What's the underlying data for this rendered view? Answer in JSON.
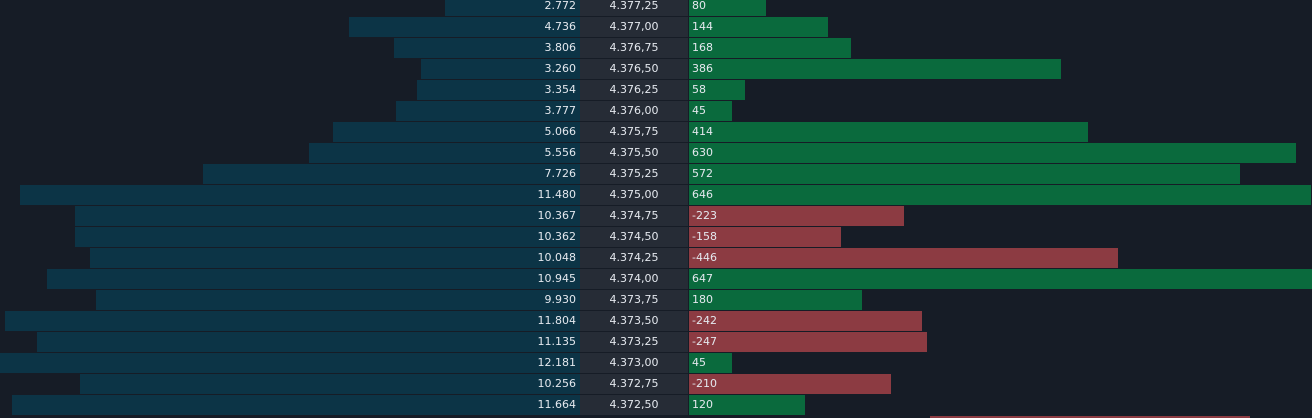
{
  "ladder": {
    "colors": {
      "volume_bar": "#0c3446",
      "price_cell": "#262c36",
      "delta_positive": "#0a6a3d",
      "delta_negative": "#8c3b42",
      "background": "#161c26"
    },
    "rows": [
      {
        "volume": "2.772",
        "price": "4.377,25",
        "delta": "80"
      },
      {
        "volume": "4.736",
        "price": "4.377,00",
        "delta": "144"
      },
      {
        "volume": "3.806",
        "price": "4.376,75",
        "delta": "168"
      },
      {
        "volume": "3.260",
        "price": "4.376,50",
        "delta": "386"
      },
      {
        "volume": "3.354",
        "price": "4.376,25",
        "delta": "58"
      },
      {
        "volume": "3.777",
        "price": "4.376,00",
        "delta": "45"
      },
      {
        "volume": "5.066",
        "price": "4.375,75",
        "delta": "414"
      },
      {
        "volume": "5.556",
        "price": "4.375,50",
        "delta": "630"
      },
      {
        "volume": "7.726",
        "price": "4.375,25",
        "delta": "572"
      },
      {
        "volume": "11.480",
        "price": "4.375,00",
        "delta": "646"
      },
      {
        "volume": "10.367",
        "price": "4.374,75",
        "delta": "-223"
      },
      {
        "volume": "10.362",
        "price": "4.374,50",
        "delta": "-158"
      },
      {
        "volume": "10.048",
        "price": "4.374,25",
        "delta": "-446"
      },
      {
        "volume": "10.945",
        "price": "4.374,00",
        "delta": "647"
      },
      {
        "volume": "9.930",
        "price": "4.373,75",
        "delta": "180"
      },
      {
        "volume": "11.804",
        "price": "4.373,50",
        "delta": "-242"
      },
      {
        "volume": "11.135",
        "price": "4.373,25",
        "delta": "-247"
      },
      {
        "volume": "12.181",
        "price": "4.373,00",
        "delta": "45"
      },
      {
        "volume": "10.256",
        "price": "4.372,75",
        "delta": "-210"
      },
      {
        "volume": "11.664",
        "price": "4.372,50",
        "delta": "120"
      }
    ]
  }
}
